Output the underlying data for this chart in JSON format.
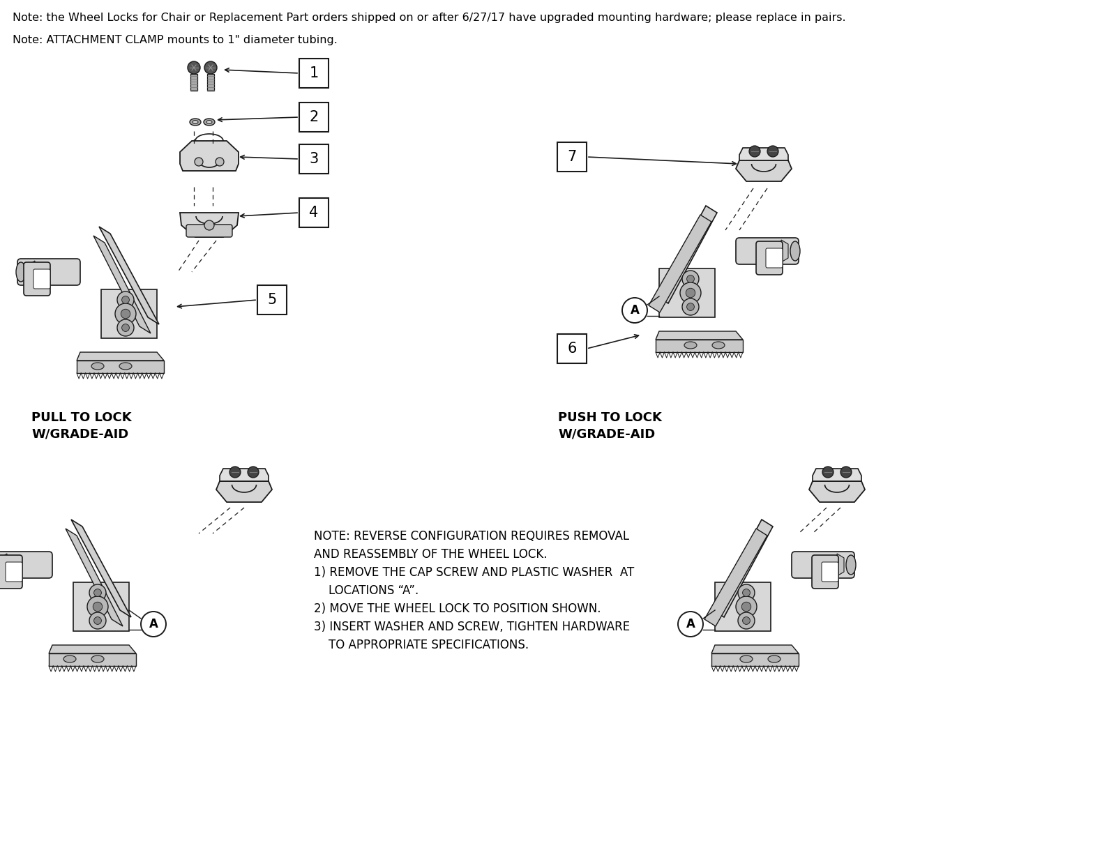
{
  "background_color": "#ffffff",
  "note1": "Note: the Wheel Locks for Chair or Replacement Part orders shipped on or after 6/27/17 have upgraded mounting hardware; please replace in pairs.",
  "note2": "Note: ATTACHMENT CLAMP mounts to 1\" diameter tubing.",
  "pull_label": "PULL TO LOCK\nW/GRADE-AID",
  "push_label": "PUSH TO LOCK\nW/GRADE-AID",
  "note_reverse_lines": [
    "NOTE: REVERSE CONFIGURATION REQUIRES REMOVAL",
    "AND REASSEMBLY OF THE WHEEL LOCK.",
    "1) REMOVE THE CAP SCREW AND PLASTIC WASHER  AT",
    "    LOCATIONS “A”.",
    "2) MOVE THE WHEEL LOCK TO POSITION SHOWN.",
    "3) INSERT WASHER AND SCREW, TIGHTEN HARDWARE",
    "    TO APPROPRIATE SPECIFICATIONS."
  ],
  "line_color": "#1a1a1a",
  "text_color": "#000000"
}
